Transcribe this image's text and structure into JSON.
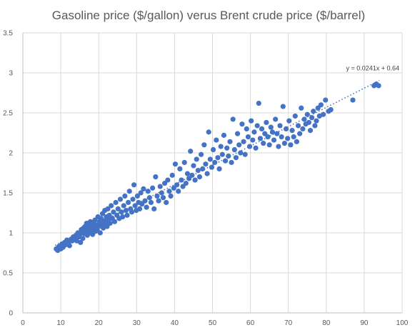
{
  "chart_data": {
    "type": "scatter",
    "title": "Gasoline price ($/gallon) verus Brent crude price ($/barrel)",
    "xlabel": "",
    "ylabel": "",
    "xlim": [
      0,
      100
    ],
    "ylim": [
      0,
      3.5
    ],
    "x_ticks": [
      0,
      10,
      20,
      30,
      40,
      50,
      60,
      70,
      80,
      90,
      100
    ],
    "y_ticks": [
      0,
      0.5,
      1,
      1.5,
      2,
      2.5,
      3,
      3.5
    ],
    "grid": true,
    "legend": "none",
    "marker_color": "#4472c4",
    "trendline": {
      "type": "linear",
      "slope": 0.0241,
      "intercept": 0.64,
      "x_range": [
        8.5,
        94
      ],
      "equation": "y = 0.0241x + 0.64"
    },
    "series": [
      {
        "points": [
          [
            8.8,
            0.8
          ],
          [
            9.2,
            0.78
          ],
          [
            9.5,
            0.83
          ],
          [
            10.0,
            0.8
          ],
          [
            10.3,
            0.86
          ],
          [
            10.6,
            0.82
          ],
          [
            11.0,
            0.88
          ],
          [
            11.2,
            0.85
          ],
          [
            11.6,
            0.91
          ],
          [
            12.0,
            0.87
          ],
          [
            12.3,
            0.84
          ],
          [
            12.7,
            0.92
          ],
          [
            13.0,
            0.9
          ],
          [
            13.3,
            0.95
          ],
          [
            13.7,
            0.93
          ],
          [
            14.0,
            0.97
          ],
          [
            14.2,
            0.9
          ],
          [
            14.5,
            1.0
          ],
          [
            14.8,
            0.95
          ],
          [
            15.0,
            0.98
          ],
          [
            15.2,
            0.88
          ],
          [
            15.4,
            1.04
          ],
          [
            15.6,
            1.0
          ],
          [
            15.8,
            0.93
          ],
          [
            16.0,
            1.06
          ],
          [
            16.2,
            0.99
          ],
          [
            16.4,
            1.08
          ],
          [
            16.6,
            1.02
          ],
          [
            16.8,
            1.12
          ],
          [
            17.0,
            0.97
          ],
          [
            17.2,
            1.05
          ],
          [
            17.4,
            1.1
          ],
          [
            17.6,
            1.0
          ],
          [
            17.8,
            1.14
          ],
          [
            18.0,
            1.03
          ],
          [
            18.2,
            1.08
          ],
          [
            18.4,
            0.98
          ],
          [
            18.6,
            1.12
          ],
          [
            18.8,
            1.06
          ],
          [
            19.0,
            1.16
          ],
          [
            19.2,
            1.02
          ],
          [
            19.4,
            1.1
          ],
          [
            19.6,
            1.04
          ],
          [
            19.8,
            1.2
          ],
          [
            20.0,
            1.08
          ],
          [
            20.2,
            1.14
          ],
          [
            20.4,
            1.0
          ],
          [
            20.6,
            1.18
          ],
          [
            20.8,
            1.1
          ],
          [
            21.0,
            1.24
          ],
          [
            21.2,
            1.06
          ],
          [
            21.4,
            1.15
          ],
          [
            21.6,
            1.28
          ],
          [
            21.8,
            1.12
          ],
          [
            22.0,
            1.2
          ],
          [
            22.2,
            1.08
          ],
          [
            22.4,
            1.3
          ],
          [
            22.6,
            1.16
          ],
          [
            22.8,
            1.22
          ],
          [
            23.0,
            1.12
          ],
          [
            23.3,
            1.34
          ],
          [
            23.6,
            1.18
          ],
          [
            23.9,
            1.26
          ],
          [
            24.2,
            1.14
          ],
          [
            24.5,
            1.38
          ],
          [
            24.8,
            1.22
          ],
          [
            25.1,
            1.3
          ],
          [
            25.4,
            1.18
          ],
          [
            25.7,
            1.42
          ],
          [
            26.0,
            1.26
          ],
          [
            26.3,
            1.2
          ],
          [
            26.6,
            1.34
          ],
          [
            26.9,
            1.46
          ],
          [
            27.2,
            1.28
          ],
          [
            27.5,
            1.22
          ],
          [
            27.8,
            1.38
          ],
          [
            28.1,
            1.52
          ],
          [
            28.4,
            1.3
          ],
          [
            28.7,
            1.26
          ],
          [
            29.0,
            1.42
          ],
          [
            29.3,
            1.6
          ],
          [
            29.6,
            1.34
          ],
          [
            29.9,
            1.28
          ],
          [
            30.2,
            1.46
          ],
          [
            30.5,
            1.38
          ],
          [
            30.8,
            1.3
          ],
          [
            31.1,
            1.5
          ],
          [
            31.4,
            1.36
          ],
          [
            31.8,
            1.55
          ],
          [
            32.2,
            1.4
          ],
          [
            32.6,
            1.32
          ],
          [
            33.0,
            1.52
          ],
          [
            33.4,
            1.44
          ],
          [
            33.8,
            1.38
          ],
          [
            34.2,
            1.56
          ],
          [
            34.6,
            1.3
          ],
          [
            35.0,
            1.7
          ],
          [
            35.4,
            1.46
          ],
          [
            35.8,
            1.4
          ],
          [
            36.2,
            1.58
          ],
          [
            36.6,
            1.5
          ],
          [
            37.0,
            1.44
          ],
          [
            37.4,
            1.62
          ],
          [
            37.8,
            1.38
          ],
          [
            38.2,
            1.66
          ],
          [
            38.6,
            1.52
          ],
          [
            39.0,
            1.46
          ],
          [
            39.4,
            1.72
          ],
          [
            39.8,
            1.56
          ],
          [
            40.2,
            1.86
          ],
          [
            40.6,
            1.6
          ],
          [
            41.0,
            1.52
          ],
          [
            41.4,
            1.8
          ],
          [
            41.8,
            1.66
          ],
          [
            42.2,
            1.58
          ],
          [
            42.6,
            1.88
          ],
          [
            43.0,
            1.62
          ],
          [
            43.4,
            1.74
          ],
          [
            43.8,
            1.68
          ],
          [
            44.2,
            2.02
          ],
          [
            44.6,
            1.72
          ],
          [
            45.0,
            1.84
          ],
          [
            45.4,
            1.66
          ],
          [
            45.8,
            1.92
          ],
          [
            46.2,
            1.78
          ],
          [
            46.6,
            1.7
          ],
          [
            47.0,
            1.98
          ],
          [
            47.4,
            1.8
          ],
          [
            47.8,
            2.1
          ],
          [
            48.2,
            1.86
          ],
          [
            48.6,
            1.74
          ],
          [
            49.0,
            2.26
          ],
          [
            49.4,
            1.92
          ],
          [
            49.8,
            1.82
          ],
          [
            50.2,
            2.04
          ],
          [
            50.6,
            1.88
          ],
          [
            51.0,
            2.16
          ],
          [
            51.4,
            1.94
          ],
          [
            51.8,
            1.8
          ],
          [
            52.2,
            2.08
          ],
          [
            52.6,
            1.98
          ],
          [
            53.0,
            2.22
          ],
          [
            53.4,
            1.9
          ],
          [
            53.8,
            2.06
          ],
          [
            54.2,
            1.96
          ],
          [
            54.6,
            2.14
          ],
          [
            55.0,
            1.88
          ],
          [
            55.4,
            2.42
          ],
          [
            55.8,
            2.04
          ],
          [
            56.2,
            1.94
          ],
          [
            56.6,
            2.24
          ],
          [
            57.0,
            2.1
          ],
          [
            57.4,
            2.0
          ],
          [
            57.8,
            2.36
          ],
          [
            58.2,
            2.14
          ],
          [
            58.6,
            1.98
          ],
          [
            59.0,
            2.3
          ],
          [
            59.4,
            2.2
          ],
          [
            59.8,
            2.08
          ],
          [
            60.2,
            2.4
          ],
          [
            60.6,
            2.16
          ],
          [
            61.0,
            2.26
          ],
          [
            61.4,
            2.06
          ],
          [
            61.8,
            2.34
          ],
          [
            62.2,
            2.62
          ],
          [
            62.6,
            2.18
          ],
          [
            63.0,
            2.3
          ],
          [
            63.4,
            2.12
          ],
          [
            63.8,
            2.24
          ],
          [
            64.2,
            2.38
          ],
          [
            64.6,
            2.2
          ],
          [
            65.0,
            2.1
          ],
          [
            65.4,
            2.32
          ],
          [
            65.8,
            2.26
          ],
          [
            66.2,
            2.16
          ],
          [
            66.6,
            2.42
          ],
          [
            67.0,
            2.24
          ],
          [
            67.4,
            2.08
          ],
          [
            67.8,
            2.34
          ],
          [
            68.2,
            2.2
          ],
          [
            68.6,
            2.58
          ],
          [
            69.0,
            2.12
          ],
          [
            69.4,
            2.3
          ],
          [
            69.8,
            2.18
          ],
          [
            70.2,
            2.4
          ],
          [
            70.6,
            2.1
          ],
          [
            71.0,
            2.28
          ],
          [
            71.4,
            2.2
          ],
          [
            71.8,
            2.46
          ],
          [
            72.2,
            2.14
          ],
          [
            72.6,
            2.34
          ],
          [
            73.0,
            2.24
          ],
          [
            73.4,
            2.56
          ],
          [
            73.8,
            2.3
          ],
          [
            74.2,
            2.42
          ],
          [
            74.6,
            2.36
          ],
          [
            75.0,
            2.48
          ],
          [
            75.4,
            2.38
          ],
          [
            75.8,
            2.28
          ],
          [
            76.2,
            2.44
          ],
          [
            76.6,
            2.52
          ],
          [
            77.0,
            2.34
          ],
          [
            77.4,
            2.4
          ],
          [
            77.8,
            2.56
          ],
          [
            78.2,
            2.46
          ],
          [
            78.6,
            2.6
          ],
          [
            79.2,
            2.48
          ],
          [
            79.8,
            2.66
          ],
          [
            80.6,
            2.52
          ],
          [
            81.2,
            2.54
          ],
          [
            87.0,
            2.66
          ],
          [
            92.6,
            2.84
          ],
          [
            93.2,
            2.86
          ],
          [
            93.8,
            2.84
          ]
        ]
      }
    ]
  }
}
